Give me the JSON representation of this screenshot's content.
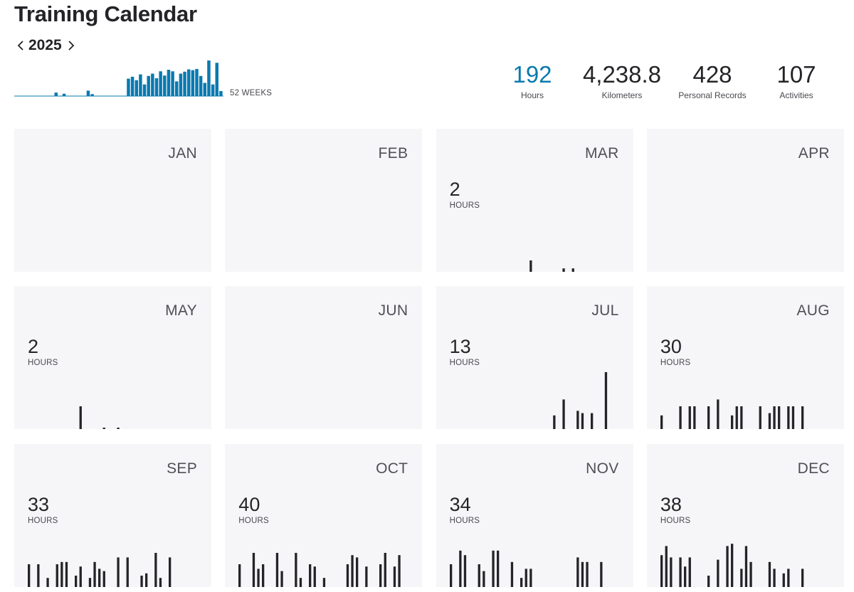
{
  "page": {
    "title": "Training Calendar"
  },
  "year_nav": {
    "year": "2025"
  },
  "weekly_chart": {
    "label": "52 WEEKS",
    "color": "#0a79b0",
    "weekly_hours": [
      0.1,
      0.1,
      0.1,
      0.1,
      0.1,
      0.1,
      0.1,
      0.1,
      0.1,
      0.1,
      0.9,
      0.1,
      0.6,
      0.1,
      0.1,
      0.1,
      0.1,
      0.1,
      1.4,
      0.5,
      0.1,
      0.1,
      0.1,
      0.1,
      0.1,
      0.1,
      0.1,
      0.1,
      4.5,
      5.0,
      4.1,
      5.6,
      3.0,
      5.2,
      5.8,
      4.6,
      6.4,
      5.3,
      6.8,
      6.4,
      3.8,
      5.8,
      6.3,
      6.9,
      6.7,
      7.0,
      5.2,
      3.4,
      9.2,
      3.0,
      8.6,
      1.3
    ]
  },
  "summary": {
    "hours": {
      "value": "192",
      "label": "Hours"
    },
    "kilometers": {
      "value": "4,238.8",
      "label": "Kilometers"
    },
    "records": {
      "value": "428",
      "label": "Personal Records"
    },
    "activities": {
      "value": "107",
      "label": "Activities"
    }
  },
  "months": [
    {
      "name": "JAN",
      "hours": "",
      "hours_label": "",
      "days": []
    },
    {
      "name": "FEB",
      "hours": "",
      "hours_label": "",
      "days": []
    },
    {
      "name": "MAR",
      "hours": "2",
      "hours_label": "HOURS",
      "days": [
        0,
        0,
        0,
        0,
        0,
        0,
        0,
        0,
        0,
        0,
        0,
        0,
        0,
        0,
        0,
        0,
        0,
        0.5,
        0,
        0,
        0,
        0,
        0,
        0,
        0.15,
        0,
        0.15,
        0,
        0,
        0,
        0
      ]
    },
    {
      "name": "APR",
      "hours": "",
      "hours_label": "",
      "days": []
    },
    {
      "name": "MAY",
      "hours": "2",
      "hours_label": "HOURS",
      "days": [
        0,
        0,
        0,
        0,
        0,
        0,
        0,
        0,
        0,
        0,
        0,
        1.0,
        0,
        0,
        0,
        0,
        0.05,
        0,
        0,
        0.05,
        0,
        0,
        0,
        0,
        0,
        0,
        0,
        0,
        0,
        0,
        0
      ]
    },
    {
      "name": "JUN",
      "hours": "",
      "hours_label": "",
      "days": []
    },
    {
      "name": "JUL",
      "hours": "13",
      "hours_label": "HOURS",
      "days": [
        0,
        0,
        0,
        0,
        0,
        0,
        0,
        0,
        0,
        0,
        0,
        0,
        0,
        0,
        0,
        0,
        0,
        0,
        0,
        0,
        0,
        0,
        0.6,
        0,
        1.3,
        0,
        0,
        0.8,
        0.7,
        0,
        0.7,
        0,
        0,
        2.5
      ]
    },
    {
      "name": "AUG",
      "hours": "30",
      "hours_label": "HOURS",
      "days": [
        0.6,
        0,
        0,
        0,
        1.0,
        0,
        1.0,
        1.0,
        0,
        0,
        1.0,
        0,
        1.3,
        0,
        0,
        0.6,
        1.0,
        1.0,
        0,
        0,
        0,
        1.0,
        0,
        0.7,
        1.0,
        1.0,
        0,
        1.0,
        1.0,
        0,
        1.0
      ]
    },
    {
      "name": "SEP",
      "hours": "33",
      "hours_label": "HOURS",
      "days": [
        1.0,
        0,
        1.0,
        0,
        0.4,
        0,
        1.0,
        1.1,
        1.1,
        0,
        0.5,
        0.9,
        0,
        0.4,
        1.1,
        0.8,
        0.7,
        0,
        0,
        1.3,
        0,
        1.3,
        0,
        0,
        0.5,
        0.6,
        0,
        1.5,
        0.4,
        0,
        1.3
      ]
    },
    {
      "name": "OCT",
      "hours": "40",
      "hours_label": "HOURS",
      "days": [
        1.0,
        0,
        0,
        1.5,
        0.8,
        1.0,
        0,
        0,
        1.5,
        0.7,
        0,
        0,
        1.5,
        0.4,
        0,
        1.0,
        0.9,
        0,
        0.4,
        0,
        0,
        0,
        0,
        1.0,
        1.4,
        1.3,
        0,
        0.9,
        0,
        0,
        1.0,
        1.5,
        0,
        0.9,
        1.4
      ]
    },
    {
      "name": "NOV",
      "hours": "34",
      "hours_label": "HOURS",
      "days": [
        1.0,
        0,
        1.6,
        1.4,
        0,
        0,
        1.0,
        0.7,
        0,
        1.6,
        1.6,
        0,
        0,
        1.1,
        0,
        0.4,
        0.8,
        0.8,
        0,
        0,
        0,
        0,
        0,
        0,
        0,
        0,
        0,
        1.3,
        1.1,
        1.1,
        0,
        0,
        1.1
      ]
    },
    {
      "name": "DEC",
      "hours": "38",
      "hours_label": "HOURS",
      "days": [
        1.4,
        1.8,
        1.3,
        0,
        1.3,
        0.9,
        1.3,
        0,
        0,
        0,
        0.5,
        0,
        1.2,
        0,
        1.8,
        1.9,
        0,
        0.8,
        1.8,
        1.1,
        0,
        0,
        0,
        1.1,
        0.8,
        0,
        0.6,
        0.8,
        0,
        0,
        0.8
      ]
    }
  ]
}
